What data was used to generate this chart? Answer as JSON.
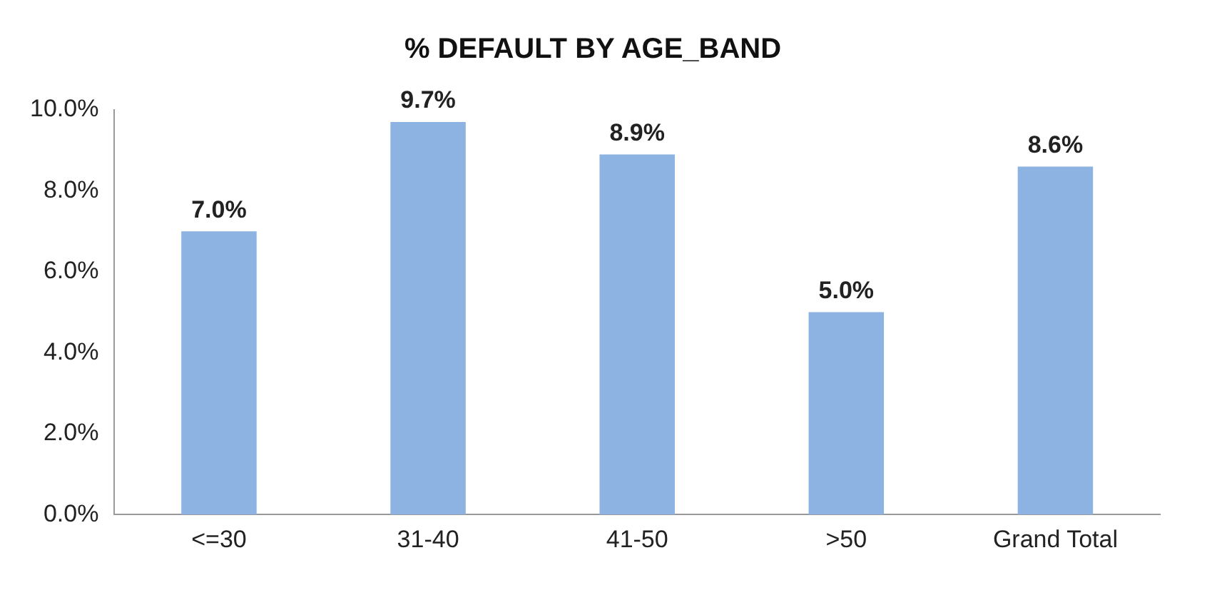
{
  "chart_data": {
    "type": "bar",
    "title": "% DEFAULT BY AGE_BAND",
    "categories": [
      "<=30",
      "31-40",
      "41-50",
      ">50",
      "Grand Total"
    ],
    "values": [
      7.0,
      9.7,
      8.9,
      5.0,
      8.6
    ],
    "value_labels": [
      "7.0%",
      "9.7%",
      "8.9%",
      "5.0%",
      "8.6%"
    ],
    "color": "#8db3e2",
    "ylim": [
      0,
      10
    ],
    "yticks": [
      {
        "value": 0,
        "label": "0.0%"
      },
      {
        "value": 2,
        "label": "2.0%"
      },
      {
        "value": 4,
        "label": "4.0%"
      },
      {
        "value": 6,
        "label": "6.0%"
      },
      {
        "value": 8,
        "label": "8.0%"
      },
      {
        "value": 10,
        "label": "10.0%"
      }
    ],
    "grid": false,
    "legend": false
  }
}
